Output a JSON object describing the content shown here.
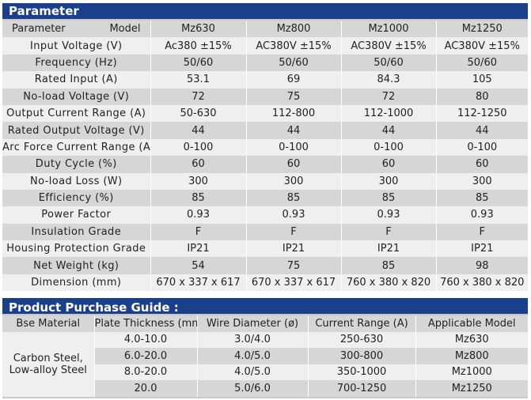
{
  "parameter": {
    "title": "Parameter",
    "header": {
      "left": "Parameter",
      "right": "Model",
      "models": [
        "Mz630",
        "Mz800",
        "Mz1000",
        "Mz1250"
      ]
    },
    "rows": [
      {
        "label": "Input Voltage (V)",
        "values": [
          "Ac380 ±15%",
          "AC380V ±15%",
          "AC380V ±15%",
          "AC380V ±15%"
        ]
      },
      {
        "label": "Frequency (Hz)",
        "values": [
          "50/60",
          "50/60",
          "50/60",
          "50/60"
        ]
      },
      {
        "label": "Rated Input (A)",
        "values": [
          "53.1",
          "69",
          "84.3",
          "105"
        ]
      },
      {
        "label": "No-load Voltage (V)",
        "values": [
          "72",
          "75",
          "72",
          "80"
        ]
      },
      {
        "label": "Output Current Range (A)",
        "values": [
          "50-630",
          "112-800",
          "112-1000",
          "112-1250"
        ]
      },
      {
        "label": "Rated Output Voltage (V)",
        "values": [
          "44",
          "44",
          "44",
          "44"
        ]
      },
      {
        "label": "Arc Force Current Range (A)",
        "values": [
          "0-100",
          "0-100",
          "0-100",
          "0-100"
        ]
      },
      {
        "label": "Duty Cycle (%)",
        "values": [
          "60",
          "60",
          "60",
          "60"
        ]
      },
      {
        "label": "No-load Loss (W)",
        "values": [
          "300",
          "300",
          "300",
          "300"
        ]
      },
      {
        "label": "Efficiency (%)",
        "values": [
          "85",
          "85",
          "85",
          "85"
        ]
      },
      {
        "label": "Power Factor",
        "values": [
          "0.93",
          "0.93",
          "0.93",
          "0.93"
        ]
      },
      {
        "label": "Insulation Grade",
        "values": [
          "F",
          "F",
          "F",
          "F"
        ]
      },
      {
        "label": "Housing Protection Grade",
        "values": [
          "IP21",
          "IP21",
          "IP21",
          "IP21"
        ]
      },
      {
        "label": "Net Weight (kg)",
        "values": [
          "54",
          "75",
          "85",
          "98"
        ]
      },
      {
        "label": "Dimension (mm)",
        "values": [
          "670 x 337 x 617",
          "670 x 337 x 617",
          "760 x 380 x 820",
          "760 x 380 x 820"
        ]
      }
    ]
  },
  "guide": {
    "title": "Product Purchase Guide :",
    "columns": [
      "Bse Material",
      "Plate Thickness (mm)",
      "Wire Diameter (ø)",
      "Current Range (A)",
      "Applicable Model"
    ],
    "material": "Carbon Steel, Low-alloy Steel",
    "rows": [
      {
        "thickness": "4.0-10.0",
        "wire": "3.0/4.0",
        "current": "250-630",
        "model": "Mz630"
      },
      {
        "thickness": "6.0-20.0",
        "wire": "4.0/5.0",
        "current": "300-800",
        "model": "Mz800"
      },
      {
        "thickness": "8.0-20.0",
        "wire": "4.0/5.0",
        "current": "350-1000",
        "model": "Mz1000"
      },
      {
        "thickness": "20.0",
        "wire": "5.0/6.0",
        "current": "700-1250",
        "model": "Mz1250"
      }
    ]
  }
}
